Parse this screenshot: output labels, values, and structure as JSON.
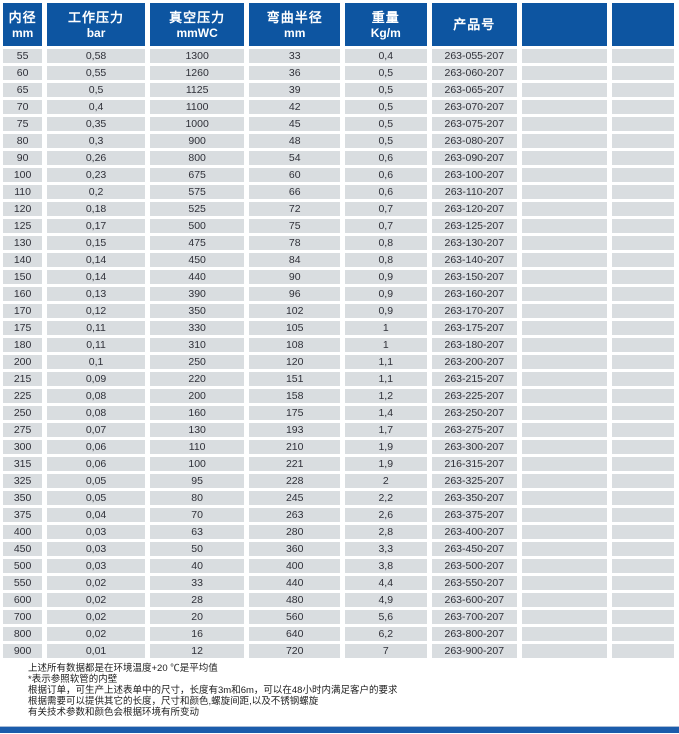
{
  "header": {
    "columns": [
      {
        "title": "内径",
        "unit": "mm"
      },
      {
        "title": "工作压力",
        "unit": "bar"
      },
      {
        "title": "真空压力",
        "unit": "mmWC"
      },
      {
        "title": "弯曲半径",
        "unit": "mm"
      },
      {
        "title": "重量",
        "unit": "Kg/m"
      },
      {
        "title": "产品号",
        "unit": ""
      },
      {
        "title": "",
        "unit": ""
      },
      {
        "title": "",
        "unit": ""
      }
    ]
  },
  "table": {
    "rows": [
      [
        "55",
        "0,58",
        "1300",
        "33",
        "0,4",
        "263-055-207",
        "",
        ""
      ],
      [
        "60",
        "0,55",
        "1260",
        "36",
        "0,5",
        "263-060-207",
        "",
        ""
      ],
      [
        "65",
        "0,5",
        "1125",
        "39",
        "0,5",
        "263-065-207",
        "",
        ""
      ],
      [
        "70",
        "0,4",
        "1100",
        "42",
        "0,5",
        "263-070-207",
        "",
        ""
      ],
      [
        "75",
        "0,35",
        "1000",
        "45",
        "0,5",
        "263-075-207",
        "",
        ""
      ],
      [
        "80",
        "0,3",
        "900",
        "48",
        "0,5",
        "263-080-207",
        "",
        ""
      ],
      [
        "90",
        "0,26",
        "800",
        "54",
        "0,6",
        "263-090-207",
        "",
        ""
      ],
      [
        "100",
        "0,23",
        "675",
        "60",
        "0,6",
        "263-100-207",
        "",
        ""
      ],
      [
        "110",
        "0,2",
        "575",
        "66",
        "0,6",
        "263-110-207",
        "",
        ""
      ],
      [
        "120",
        "0,18",
        "525",
        "72",
        "0,7",
        "263-120-207",
        "",
        ""
      ],
      [
        "125",
        "0,17",
        "500",
        "75",
        "0,7",
        "263-125-207",
        "",
        ""
      ],
      [
        "130",
        "0,15",
        "475",
        "78",
        "0,8",
        "263-130-207",
        "",
        ""
      ],
      [
        "140",
        "0,14",
        "450",
        "84",
        "0,8",
        "263-140-207",
        "",
        ""
      ],
      [
        "150",
        "0,14",
        "440",
        "90",
        "0,9",
        "263-150-207",
        "",
        ""
      ],
      [
        "160",
        "0,13",
        "390",
        "96",
        "0,9",
        "263-160-207",
        "",
        ""
      ],
      [
        "170",
        "0,12",
        "350",
        "102",
        "0,9",
        "263-170-207",
        "",
        ""
      ],
      [
        "175",
        "0,11",
        "330",
        "105",
        "1",
        "263-175-207",
        "",
        ""
      ],
      [
        "180",
        "0,11",
        "310",
        "108",
        "1",
        "263-180-207",
        "",
        ""
      ],
      [
        "200",
        "0,1",
        "250",
        "120",
        "1,1",
        "263-200-207",
        "",
        ""
      ],
      [
        "215",
        "0,09",
        "220",
        "151",
        "1,1",
        "263-215-207",
        "",
        ""
      ],
      [
        "225",
        "0,08",
        "200",
        "158",
        "1,2",
        "263-225-207",
        "",
        ""
      ],
      [
        "250",
        "0,08",
        "160",
        "175",
        "1,4",
        "263-250-207",
        "",
        ""
      ],
      [
        "275",
        "0,07",
        "130",
        "193",
        "1,7",
        "263-275-207",
        "",
        ""
      ],
      [
        "300",
        "0,06",
        "110",
        "210",
        "1,9",
        "263-300-207",
        "",
        ""
      ],
      [
        "315",
        "0,06",
        "100",
        "221",
        "1,9",
        "216-315-207",
        "",
        ""
      ],
      [
        "325",
        "0,05",
        "95",
        "228",
        "2",
        "263-325-207",
        "",
        ""
      ],
      [
        "350",
        "0,05",
        "80",
        "245",
        "2,2",
        "263-350-207",
        "",
        ""
      ],
      [
        "375",
        "0,04",
        "70",
        "263",
        "2,6",
        "263-375-207",
        "",
        ""
      ],
      [
        "400",
        "0,03",
        "63",
        "280",
        "2,8",
        "263-400-207",
        "",
        ""
      ],
      [
        "450",
        "0,03",
        "50",
        "360",
        "3,3",
        "263-450-207",
        "",
        ""
      ],
      [
        "500",
        "0,03",
        "40",
        "400",
        "3,8",
        "263-500-207",
        "",
        ""
      ],
      [
        "550",
        "0,02",
        "33",
        "440",
        "4,4",
        "263-550-207",
        "",
        ""
      ],
      [
        "600",
        "0,02",
        "28",
        "480",
        "4,9",
        "263-600-207",
        "",
        ""
      ],
      [
        "700",
        "0,02",
        "20",
        "560",
        "5,6",
        "263-700-207",
        "",
        ""
      ],
      [
        "800",
        "0,02",
        "16",
        "640",
        "6,2",
        "263-800-207",
        "",
        ""
      ],
      [
        "900",
        "0,01",
        "12",
        "720",
        "7",
        "263-900-207",
        "",
        ""
      ]
    ]
  },
  "footnotes": [
    "上述所有数据都是在环境温度+20 ℃是平均值",
    "*表示参照软管的内壁",
    "根据订单，可生产上述表单中的尺寸，长度有3m和6m，可以在48小时内满足客户的要求",
    "根据需要可以提供其它的长度，尺寸和颜色,螺旋间距,以及不锈钢螺旋",
    "有关技术参数和颜色会根据环境有所变动"
  ],
  "colors": {
    "header_blue": "#0d55a1",
    "row_gray": "#d9dde0",
    "bottom_bar_blue": "#1b5cab",
    "text_dark": "#2f3038"
  }
}
